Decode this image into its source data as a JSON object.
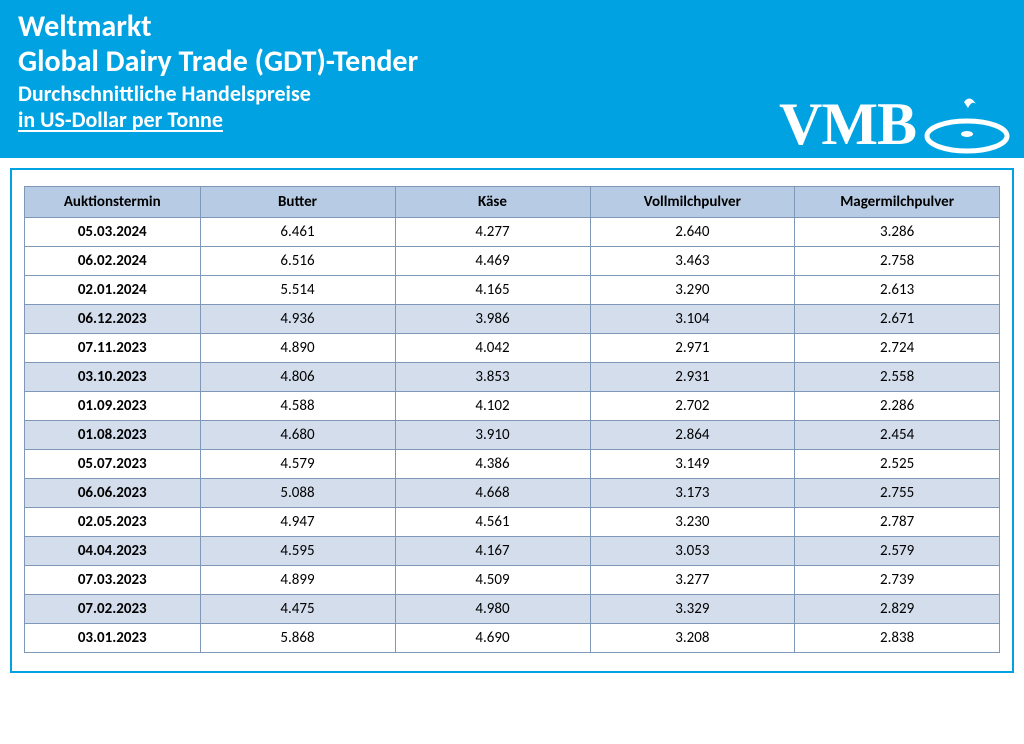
{
  "header": {
    "line1": "Weltmarkt",
    "line2": "Global Dairy Trade (GDT)-Tender",
    "line3": "Durchschnittliche Handelspreise",
    "line4": "in US-Dollar per Tonne",
    "logo_text": "VMB"
  },
  "colors": {
    "header_bg": "#00a2e1",
    "header_text": "#ffffff",
    "table_border": "#7f98b8",
    "th_bg": "#b7cce4",
    "row_shade": "#d3ddec",
    "row_plain": "#ffffff",
    "frame_border": "#00a2e1"
  },
  "table": {
    "type": "table",
    "columns": [
      "Auktionstermin",
      "Butter",
      "Käse",
      "Vollmilchpulver",
      "Magermilchpulver"
    ],
    "column_widths_pct": [
      18,
      20,
      20,
      21,
      21
    ],
    "header_fontsize": 15,
    "cell_fontsize": 15,
    "rows": [
      {
        "shade": false,
        "cells": [
          "05.03.2024",
          "6.461",
          "4.277",
          "2.640",
          "3.286"
        ]
      },
      {
        "shade": false,
        "cells": [
          "06.02.2024",
          "6.516",
          "4.469",
          "3.463",
          "2.758"
        ]
      },
      {
        "shade": false,
        "cells": [
          "02.01.2024",
          "5.514",
          "4.165",
          "3.290",
          "2.613"
        ]
      },
      {
        "shade": true,
        "cells": [
          "06.12.2023",
          "4.936",
          "3.986",
          "3.104",
          "2.671"
        ]
      },
      {
        "shade": false,
        "cells": [
          "07.11.2023",
          "4.890",
          "4.042",
          "2.971",
          "2.724"
        ]
      },
      {
        "shade": true,
        "cells": [
          "03.10.2023",
          "4.806",
          "3.853",
          "2.931",
          "2.558"
        ]
      },
      {
        "shade": false,
        "cells": [
          "01.09.2023",
          "4.588",
          "4.102",
          "2.702",
          "2.286"
        ]
      },
      {
        "shade": true,
        "cells": [
          "01.08.2023",
          "4.680",
          "3.910",
          "2.864",
          "2.454"
        ]
      },
      {
        "shade": false,
        "cells": [
          "05.07.2023",
          "4.579",
          "4.386",
          "3.149",
          "2.525"
        ]
      },
      {
        "shade": true,
        "cells": [
          "06.06.2023",
          "5.088",
          "4.668",
          "3.173",
          "2.755"
        ]
      },
      {
        "shade": false,
        "cells": [
          "02.05.2023",
          "4.947",
          "4.561",
          "3.230",
          "2.787"
        ]
      },
      {
        "shade": true,
        "cells": [
          "04.04.2023",
          "4.595",
          "4.167",
          "3.053",
          "2.579"
        ]
      },
      {
        "shade": false,
        "cells": [
          "07.03.2023",
          "4.899",
          "4.509",
          "3.277",
          "2.739"
        ]
      },
      {
        "shade": true,
        "cells": [
          "07.02.2023",
          "4.475",
          "4.980",
          "3.329",
          "2.829"
        ]
      },
      {
        "shade": false,
        "cells": [
          "03.01.2023",
          "5.868",
          "4.690",
          "3.208",
          "2.838"
        ]
      }
    ]
  }
}
